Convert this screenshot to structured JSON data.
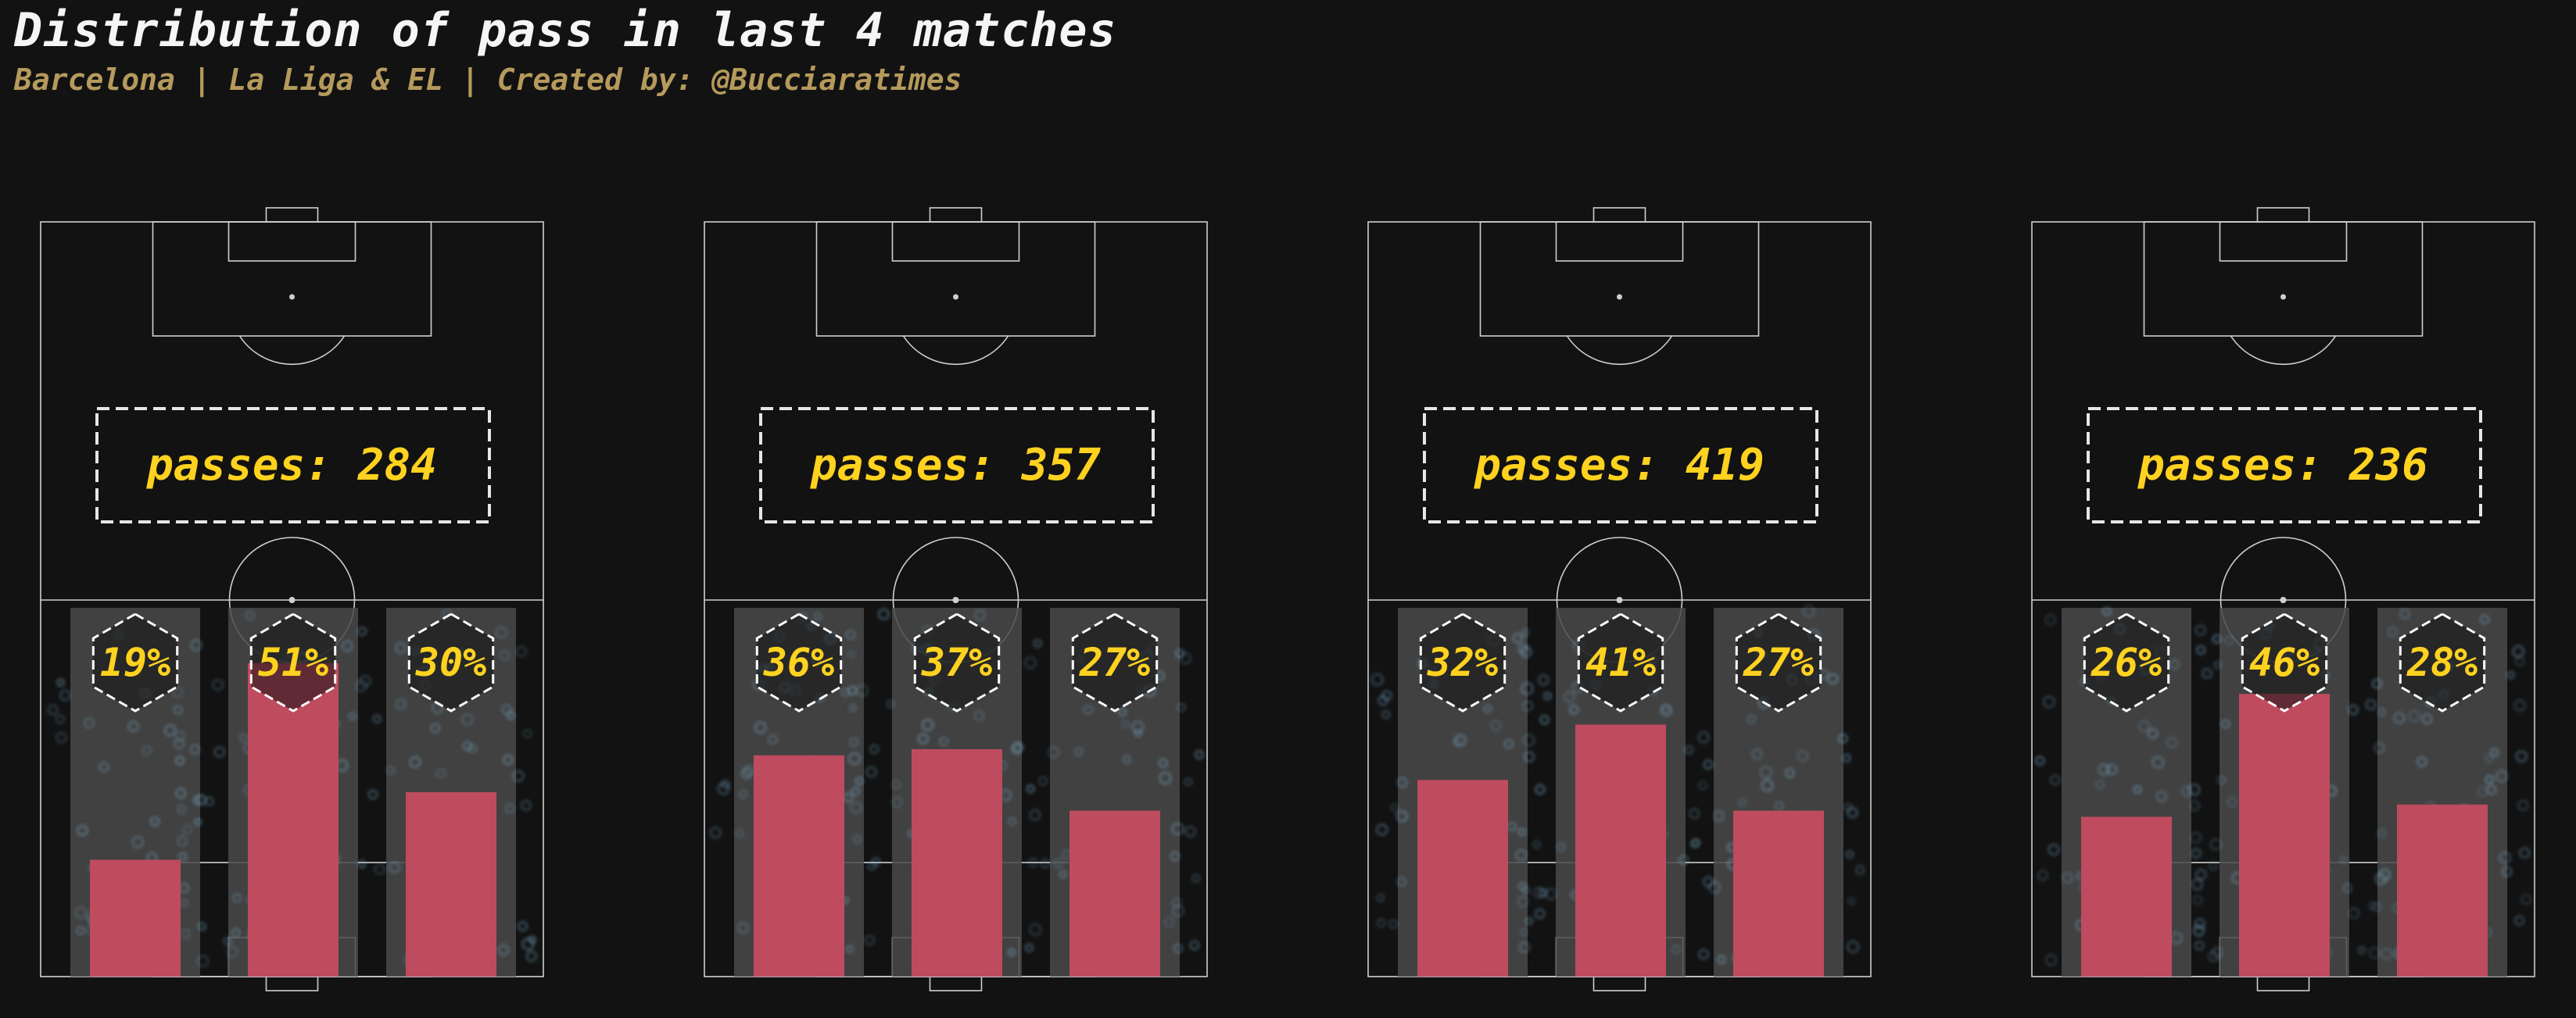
{
  "header": {
    "title": "Distribution of pass in last 4 matches",
    "subtitle": "Barcelona | La Liga & EL | Created by: @Bucciaratimes"
  },
  "colors": {
    "background": "#121212",
    "pitch_line": "#cfcfcf",
    "channel": "#4a4a4a",
    "bar": "#bf4b5e",
    "text_accent": "#ffd21f",
    "pass_dot": "#7fb6d6"
  },
  "chart_data": [
    {
      "type": "bar",
      "passes_label": "passes: 284",
      "categories": [
        "left",
        "center",
        "right"
      ],
      "values": [
        19,
        51,
        30
      ],
      "value_labels": [
        "19%",
        "51%",
        "30%"
      ]
    },
    {
      "type": "bar",
      "passes_label": "passes: 357",
      "categories": [
        "left",
        "center",
        "right"
      ],
      "values": [
        36,
        37,
        27
      ],
      "value_labels": [
        "36%",
        "37%",
        "27%"
      ]
    },
    {
      "type": "bar",
      "passes_label": "passes: 419",
      "categories": [
        "left",
        "center",
        "right"
      ],
      "values": [
        32,
        41,
        27
      ],
      "value_labels": [
        "32%",
        "41%",
        "27%"
      ]
    },
    {
      "type": "bar",
      "passes_label": "passes: 236",
      "categories": [
        "left",
        "center",
        "right"
      ],
      "values": [
        26,
        46,
        28
      ],
      "value_labels": [
        "26%",
        "46%",
        "28%"
      ]
    }
  ]
}
